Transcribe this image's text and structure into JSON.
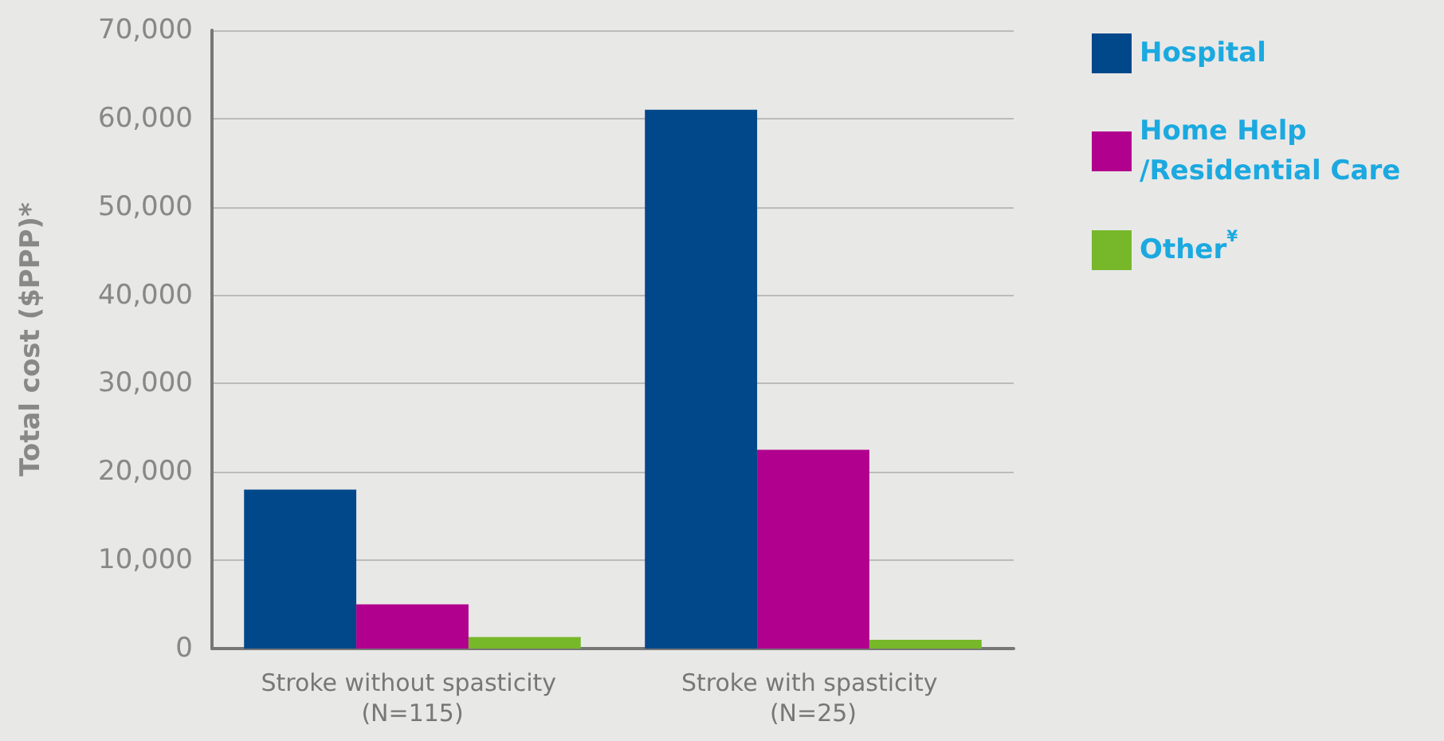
{
  "chart_data": {
    "type": "bar",
    "ylabel": "Total cost ($PPP)*",
    "categories": [
      "Stroke without spasticity (N=115)",
      "Stroke with spasticity (N=25)"
    ],
    "series": [
      {
        "name": "Hospital",
        "color": "#00488a",
        "values": [
          18000,
          61000
        ]
      },
      {
        "name": "Home Help\n/Residential Care",
        "color": "#b1008d",
        "values": [
          5000,
          22500
        ]
      },
      {
        "name": "Other$^{¥}$",
        "color": "#76b82a",
        "values": [
          1300,
          1000
        ]
      }
    ],
    "ylim": [
      0,
      70000
    ],
    "yticks": [
      0,
      {
        "value": 10000,
        "label": "10,000"
      },
      {
        "value": 20000,
        "label": "20,000"
      },
      {
        "value": 30000,
        "label": "30,000"
      },
      {
        "value": 40000,
        "label": "40,000"
      },
      {
        "value": 50000,
        "label": "50,000"
      },
      {
        "value": 60000,
        "label": "60,000"
      },
      {
        "value": 70000,
        "label": "70,000"
      }
    ],
    "grid": "y",
    "legend": "top right"
  }
}
